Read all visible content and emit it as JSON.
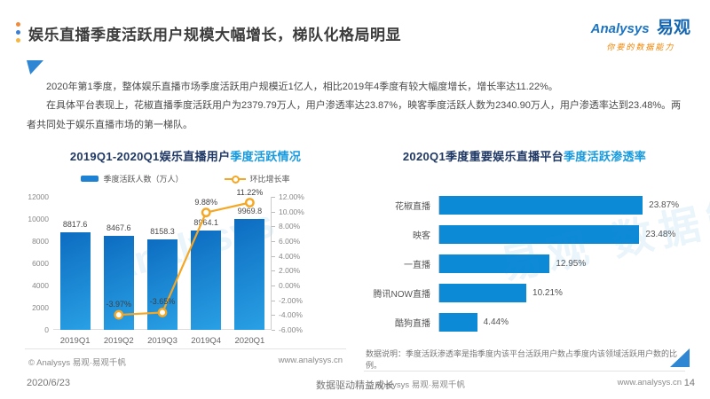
{
  "header": {
    "title": "娱乐直播季度活跃用户规模大幅增长，梯队化格局明显",
    "logo_en": "Analysys",
    "logo_cn": "易观",
    "tagline": "你要的数据能力"
  },
  "intro": {
    "para1": "2020年第1季度，整体娱乐直播市场季度活跃用户规模近1亿人，相比2019年4季度有较大幅度增长，增长率达11.22%。",
    "para2": "在具体平台表现上，花椒直播季度活跃用户为2379.79万人，用户渗透率达23.87%，映客季度活跃人数为2340.90万人，用户渗透率达到23.48%。两者共同处于娱乐直播市场的第一梯队。"
  },
  "chart_data": [
    {
      "type": "bar",
      "subtype": "bar+line-combo",
      "title_main": "2019Q1-2020Q1娱乐直播用户",
      "title_highlight": "季度活跃情况",
      "legend": [
        "季度活跃人数（万人）",
        "环比增长率"
      ],
      "categories": [
        "2019Q1",
        "2019Q2",
        "2019Q3",
        "2019Q4",
        "2020Q1"
      ],
      "series": [
        {
          "name": "季度活跃人数（万人）",
          "values": [
            8817.6,
            8467.6,
            8158.3,
            8964.1,
            9969.8
          ],
          "labels": [
            "8817.6",
            "8467.6",
            "8158.3",
            "8964.1",
            "9969.8"
          ]
        },
        {
          "name": "环比增长率",
          "values": [
            null,
            -3.97,
            -3.65,
            9.88,
            11.22
          ],
          "labels": [
            null,
            "-3.97%",
            "-3.65%",
            "9.88%",
            "11.22%"
          ]
        }
      ],
      "y_left": {
        "min": 0,
        "max": 12000,
        "step": 2000
      },
      "y_right": {
        "min": -6,
        "max": 12,
        "step": 2,
        "format": "percent"
      },
      "legend_position": "top",
      "grid": false,
      "footer_copyright": "© Analysys 易观·易观千帆",
      "footer_url": "www.analysys.cn"
    },
    {
      "type": "bar",
      "subtype": "horizontal",
      "title_main": "2020Q1季度重要娱乐直播平台",
      "title_highlight": "季度活跃渗透率",
      "categories": [
        "花椒直播",
        "映客",
        "一直播",
        "腾讯NOW直播",
        "酷狗直播"
      ],
      "values": [
        23.87,
        23.48,
        12.95,
        10.21,
        4.44
      ],
      "labels": [
        "23.87%",
        "23.48%",
        "12.95%",
        "10.21%",
        "4.44%"
      ],
      "xlim": [
        0,
        26
      ],
      "grid": false,
      "note": "数据说明：季度活跃渗透率是指季度内该平台活跃用户数占季度内该领域活跃用户数的比例。",
      "footer_copyright": "© Analysys 易观·易观千帆",
      "footer_url": "www.analysys.cn"
    }
  ],
  "watermarks": [
    "Analysys",
    "易观 数据能力"
  ],
  "footer": {
    "date": "2020/6/23",
    "slogan": "数据驱动精益成长",
    "page": "14"
  },
  "colors": {
    "dot_top": "#f08a3c",
    "dot_mid": "#3b7fd4",
    "dot_bottom": "#f6b53e",
    "navy_title": "#1f3864",
    "highlight_blue": "#189ade",
    "bar_gradient_from": "#0d6cc0",
    "bar_gradient_to": "#29a0e5",
    "hbar_blue": "#0d8ad6",
    "line_orange": "#f5a623",
    "triangle_blue": "#2f86d3",
    "logo_blue": "#1b74c2",
    "tagline_orange": "#f08300"
  }
}
